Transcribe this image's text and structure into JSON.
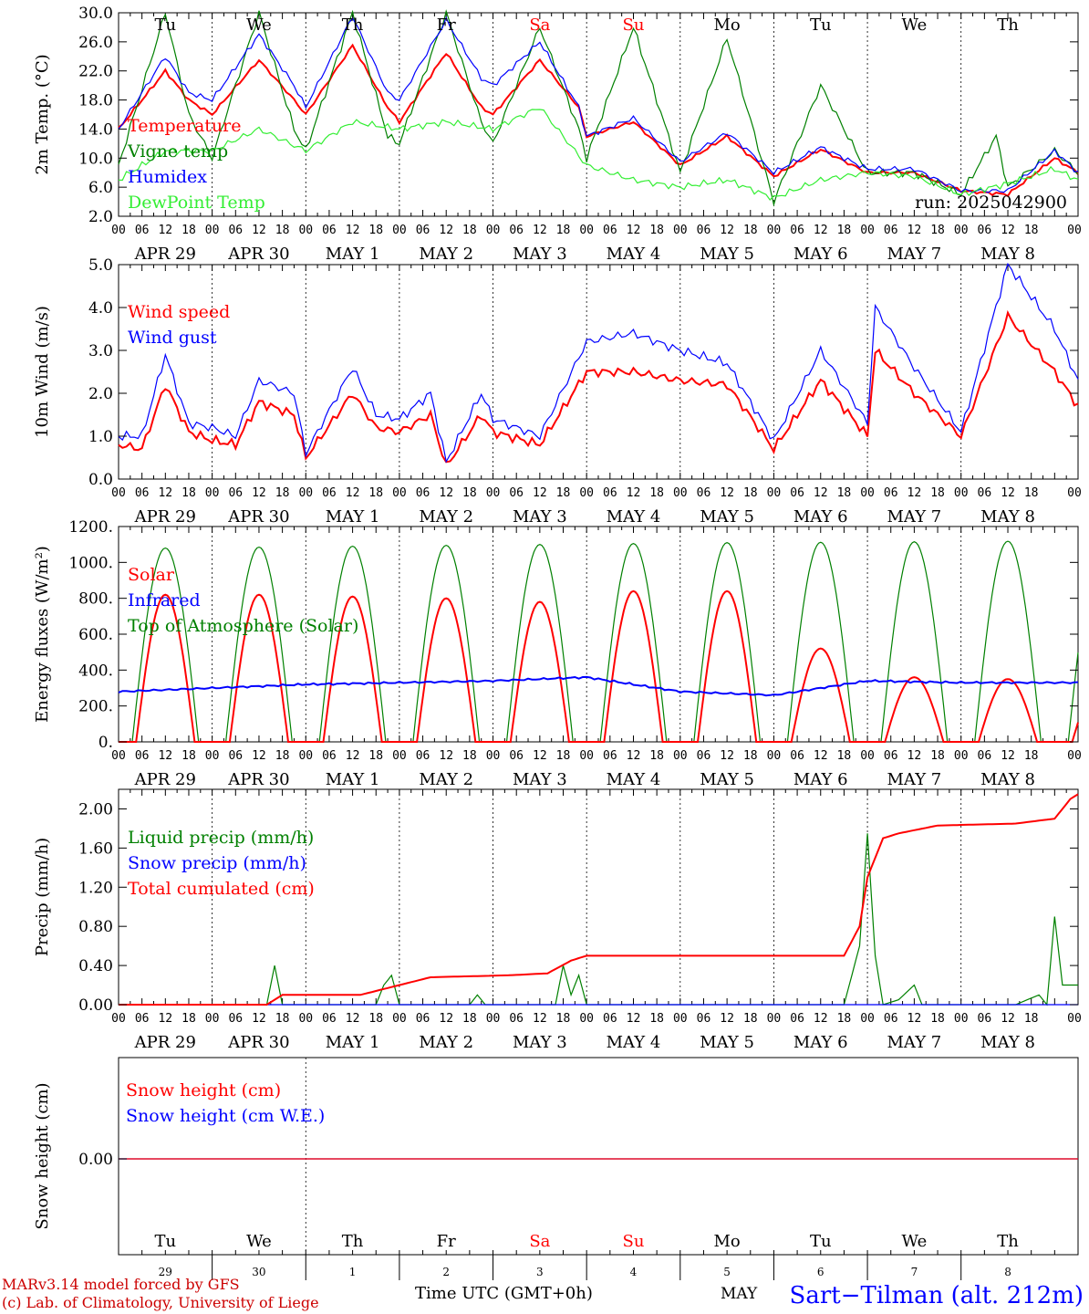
{
  "colors": {
    "red": "#ff0000",
    "green": "#008000",
    "blue": "#0000ff",
    "lightgreen": "#33ee33",
    "darkred": "#cc0000"
  },
  "day_names": [
    "Tu",
    "We",
    "Th",
    "Fr",
    "Sa",
    "Su",
    "Mo",
    "Tu",
    "We",
    "Th"
  ],
  "weekend_days": [
    "Sa",
    "Su"
  ],
  "date_labels": [
    "APR 29",
    "APR 30",
    "MAY  1",
    "MAY  2",
    "MAY  3",
    "MAY  4",
    "MAY  5",
    "MAY  6",
    "MAY  7",
    "MAY  8"
  ],
  "hour_labels": [
    "00",
    "06",
    "12",
    "18"
  ],
  "last_hour_label": "00",
  "day_numbers": [
    "29",
    "30",
    "1",
    "2",
    "3",
    "4",
    "5",
    "6",
    "7",
    "8"
  ],
  "run_label": "run: 2025042900",
  "footer": {
    "credit1": "MARv3.14 model forced by GFS",
    "credit2": "(c) Lab. of Climatology, University of Liege",
    "xlabel": "Time UTC (GMT+0h)",
    "month": "MAY",
    "station": "Sart−Tilman (alt. 212m)"
  },
  "chart_data": [
    {
      "type": "line",
      "ylabel": "2m Temp. (°C)",
      "ylim": [
        2,
        30
      ],
      "yticks": [
        "2.0",
        "6.0",
        "10.0",
        "14.0",
        "18.0",
        "22.0",
        "26.0",
        "30.0"
      ],
      "x_unit": "hours since APR 29 00 UTC",
      "series": [
        {
          "name": "Temperature",
          "color": "red",
          "points": [
            [
              0,
              14
            ],
            [
              12,
              22
            ],
            [
              18,
              18
            ],
            [
              24,
              16
            ],
            [
              36,
              23.5
            ],
            [
              45,
              18
            ],
            [
              48,
              16
            ],
            [
              60,
              25.5
            ],
            [
              69,
              17
            ],
            [
              72,
              15
            ],
            [
              84,
              24.5
            ],
            [
              93,
              17
            ],
            [
              96,
              16
            ],
            [
              108,
              23.5
            ],
            [
              118,
              17
            ],
            [
              120,
              13
            ],
            [
              132,
              15
            ],
            [
              144,
              9
            ],
            [
              156,
              13
            ],
            [
              168,
              7.5
            ],
            [
              180,
              11.2
            ],
            [
              192,
              8
            ],
            [
              204,
              8
            ],
            [
              216,
              5.5
            ],
            [
              228,
              5
            ],
            [
              240,
              10
            ],
            [
              246,
              8
            ]
          ]
        },
        {
          "name": "Vigne temp",
          "color": "green",
          "points": [
            [
              0,
              9
            ],
            [
              12,
              30
            ],
            [
              18,
              16
            ],
            [
              24,
              10
            ],
            [
              36,
              30
            ],
            [
              45,
              14
            ],
            [
              48,
              11
            ],
            [
              60,
              30
            ],
            [
              69,
              13
            ],
            [
              72,
              12
            ],
            [
              84,
              30
            ],
            [
              93,
              15
            ],
            [
              96,
              12
            ],
            [
              108,
              28
            ],
            [
              118,
              14
            ],
            [
              120,
              10
            ],
            [
              132,
              28
            ],
            [
              144,
              8
            ],
            [
              156,
              26.5
            ],
            [
              168,
              4
            ],
            [
              180,
              20
            ],
            [
              192,
              8
            ],
            [
              204,
              8
            ],
            [
              216,
              5
            ],
            [
              225,
              13
            ],
            [
              228,
              6
            ],
            [
              240,
              11
            ],
            [
              246,
              8
            ]
          ]
        },
        {
          "name": "Humidex",
          "color": "blue",
          "points": [
            [
              0,
              14
            ],
            [
              12,
              24
            ],
            [
              18,
              19
            ],
            [
              24,
              18
            ],
            [
              36,
              27
            ],
            [
              45,
              20
            ],
            [
              48,
              17
            ],
            [
              60,
              29.5
            ],
            [
              69,
              19
            ],
            [
              72,
              18
            ],
            [
              84,
              29
            ],
            [
              93,
              21
            ],
            [
              96,
              20
            ],
            [
              108,
              26
            ],
            [
              118,
              17
            ],
            [
              120,
              13
            ],
            [
              132,
              15.5
            ],
            [
              144,
              9.5
            ],
            [
              156,
              13.5
            ],
            [
              168,
              8
            ],
            [
              180,
              11.5
            ],
            [
              192,
              8.5
            ],
            [
              204,
              8.5
            ],
            [
              216,
              5.5
            ],
            [
              228,
              5.5
            ],
            [
              240,
              11
            ],
            [
              246,
              8
            ]
          ]
        },
        {
          "name": "DewPoint Temp",
          "color": "lightgreen",
          "points": [
            [
              0,
              7
            ],
            [
              12,
              11
            ],
            [
              24,
              11
            ],
            [
              36,
              14
            ],
            [
              48,
              11
            ],
            [
              60,
              15
            ],
            [
              72,
              14
            ],
            [
              84,
              15
            ],
            [
              96,
              14
            ],
            [
              108,
              17
            ],
            [
              120,
              9
            ],
            [
              132,
              7
            ],
            [
              144,
              6
            ],
            [
              156,
              7
            ],
            [
              168,
              4.5
            ],
            [
              180,
              7
            ],
            [
              192,
              8
            ],
            [
              204,
              7.5
            ],
            [
              216,
              5
            ],
            [
              228,
              6.5
            ],
            [
              240,
              8.5
            ],
            [
              246,
              7
            ]
          ]
        }
      ]
    },
    {
      "type": "line",
      "ylabel": "10m Wind (m/s)",
      "ylim": [
        0,
        5
      ],
      "yticks": [
        "0.0",
        "1.0",
        "2.0",
        "3.0",
        "4.0",
        "5.0"
      ],
      "series": [
        {
          "name": "Wind speed",
          "color": "red",
          "points": [
            [
              0,
              0.8
            ],
            [
              6,
              0.7
            ],
            [
              12,
              2.2
            ],
            [
              18,
              1.1
            ],
            [
              24,
              0.9
            ],
            [
              30,
              0.8
            ],
            [
              36,
              1.8
            ],
            [
              45,
              1.5
            ],
            [
              48,
              0.5
            ],
            [
              60,
              2
            ],
            [
              66,
              1.2
            ],
            [
              72,
              1.1
            ],
            [
              80,
              1.5
            ],
            [
              84,
              0.3
            ],
            [
              93,
              1.5
            ],
            [
              96,
              1.1
            ],
            [
              108,
              0.8
            ],
            [
              120,
              2.5
            ],
            [
              132,
              2.5
            ],
            [
              144,
              2.3
            ],
            [
              156,
              2.2
            ],
            [
              168,
              0.7
            ],
            [
              180,
              2.3
            ],
            [
              192,
              1.0
            ],
            [
              194,
              3.0
            ],
            [
              204,
              2.0
            ],
            [
              216,
              1.0
            ],
            [
              228,
              3.8
            ],
            [
              240,
              2.5
            ],
            [
              246,
              1.7
            ]
          ]
        },
        {
          "name": "Wind gust",
          "color": "blue",
          "points": [
            [
              0,
              1
            ],
            [
              6,
              1
            ],
            [
              12,
              2.9
            ],
            [
              18,
              1.3
            ],
            [
              24,
              1.2
            ],
            [
              30,
              1.0
            ],
            [
              36,
              2.3
            ],
            [
              45,
              2.0
            ],
            [
              48,
              0.6
            ],
            [
              60,
              2.6
            ],
            [
              66,
              1.5
            ],
            [
              72,
              1.4
            ],
            [
              80,
              2.0
            ],
            [
              84,
              0.4
            ],
            [
              93,
              2.0
            ],
            [
              96,
              1.4
            ],
            [
              108,
              1.0
            ],
            [
              120,
              3.2
            ],
            [
              132,
              3.4
            ],
            [
              144,
              3.0
            ],
            [
              156,
              2.7
            ],
            [
              168,
              0.9
            ],
            [
              180,
              3.0
            ],
            [
              192,
              1.3
            ],
            [
              194,
              4.0
            ],
            [
              204,
              2.6
            ],
            [
              216,
              1.1
            ],
            [
              228,
              5
            ],
            [
              240,
              3.5
            ],
            [
              246,
              2.3
            ]
          ]
        }
      ]
    },
    {
      "type": "line",
      "ylabel": "Energy fluxes (W/m²)",
      "ylim": [
        0,
        1200
      ],
      "yticks": [
        "0.",
        "200.",
        "400.",
        "600.",
        "800.",
        "1000.",
        "1200."
      ],
      "series": [
        {
          "name": "Solar",
          "color": "red",
          "daily_peak": [
            820,
            820,
            810,
            800,
            780,
            840,
            840,
            520,
            360,
            350
          ]
        },
        {
          "name": "Infrared",
          "color": "blue",
          "points": [
            [
              0,
              280
            ],
            [
              24,
              300
            ],
            [
              48,
              320
            ],
            [
              72,
              330
            ],
            [
              96,
              340
            ],
            [
              120,
              360
            ],
            [
              144,
              280
            ],
            [
              168,
              260
            ],
            [
              192,
              340
            ],
            [
              216,
              330
            ],
            [
              240,
              330
            ],
            [
              246,
              330
            ]
          ]
        },
        {
          "name": "Top of Atmosphere (Solar)",
          "color": "green",
          "daily_peak": [
            1080,
            1085,
            1090,
            1095,
            1100,
            1105,
            1110,
            1112,
            1115,
            1118
          ]
        }
      ]
    },
    {
      "type": "line",
      "ylabel": "Precip (mm/h)",
      "ylim": [
        0,
        2.2
      ],
      "yticks": [
        "0.00",
        "0.40",
        "0.80",
        "1.20",
        "1.60",
        "2.00"
      ],
      "series": [
        {
          "name": "Liquid precip (mm/h)",
          "color": "green",
          "points": [
            [
              0,
              0
            ],
            [
              38,
              0
            ],
            [
              40,
              0.4
            ],
            [
              42,
              0
            ],
            [
              66,
              0
            ],
            [
              68,
              0.2
            ],
            [
              70,
              0.3
            ],
            [
              72,
              0
            ],
            [
              90,
              0
            ],
            [
              92,
              0.1
            ],
            [
              94,
              0
            ],
            [
              112,
              0
            ],
            [
              114,
              0.4
            ],
            [
              116,
              0.1
            ],
            [
              118,
              0.3
            ],
            [
              120,
              0
            ],
            [
              186,
              0
            ],
            [
              190,
              0.6
            ],
            [
              192,
              1.75
            ],
            [
              194,
              0.5
            ],
            [
              196,
              0
            ],
            [
              200,
              0.05
            ],
            [
              204,
              0.2
            ],
            [
              206,
              0
            ],
            [
              230,
              0
            ],
            [
              236,
              0.1
            ],
            [
              238,
              0
            ],
            [
              240,
              0.9
            ],
            [
              242,
              0.2
            ],
            [
              246,
              0.2
            ]
          ]
        },
        {
          "name": "Snow precip (mm/h)",
          "color": "blue",
          "points": [
            [
              0,
              0
            ],
            [
              246,
              0
            ]
          ]
        },
        {
          "name": "Total cumulated (cm)",
          "color": "red",
          "points": [
            [
              0,
              0
            ],
            [
              38,
              0
            ],
            [
              42,
              0.1
            ],
            [
              62,
              0.1
            ],
            [
              72,
              0.2
            ],
            [
              80,
              0.28
            ],
            [
              100,
              0.3
            ],
            [
              110,
              0.32
            ],
            [
              116,
              0.45
            ],
            [
              120,
              0.5
            ],
            [
              186,
              0.5
            ],
            [
              190,
              0.8
            ],
            [
              192,
              1.3
            ],
            [
              196,
              1.7
            ],
            [
              200,
              1.75
            ],
            [
              210,
              1.83
            ],
            [
              230,
              1.85
            ],
            [
              240,
              1.9
            ],
            [
              244,
              2.1
            ],
            [
              246,
              2.15
            ]
          ]
        }
      ]
    },
    {
      "type": "line",
      "ylabel": "Snow height (cm)",
      "yticks": [
        "0.00"
      ],
      "series": [
        {
          "name": "Snow height (cm)",
          "color": "red",
          "points": [
            [
              0,
              0
            ],
            [
              246,
              0
            ]
          ]
        },
        {
          "name": "Snow height (cm W.E.)",
          "color": "blue",
          "points": [
            [
              0,
              0
            ],
            [
              246,
              0
            ]
          ]
        }
      ]
    }
  ]
}
